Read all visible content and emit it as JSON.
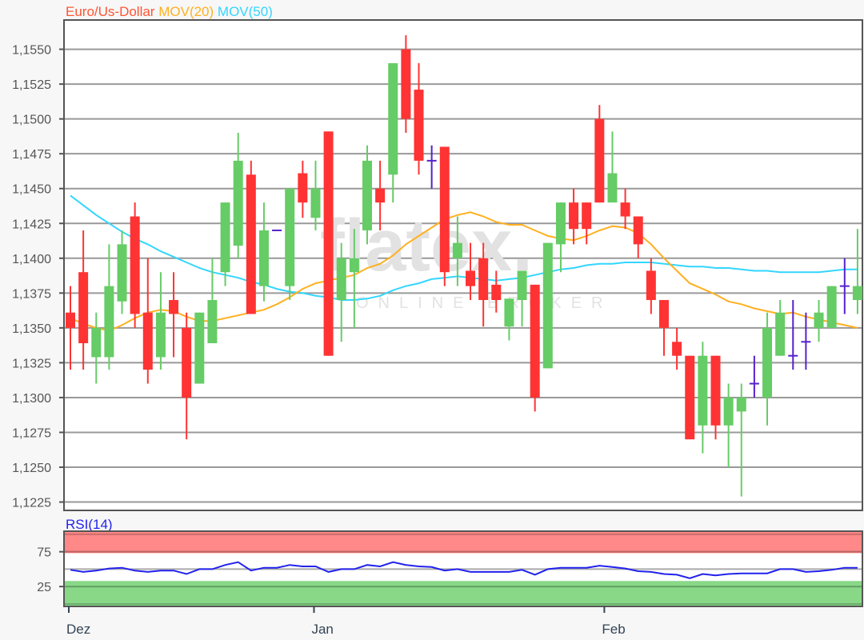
{
  "chart_data": {
    "type": "candlestick",
    "title": {
      "instrument": "Euro/Us-Dollar",
      "ma20_label": "MOV(20)",
      "ma50_label": "MOV(50)"
    },
    "colors": {
      "title": "#ff5533",
      "ma20": "#ffb020",
      "ma50": "#33d6ff",
      "up": "#66cc66",
      "down": "#ff3333",
      "doji": "#5522cc",
      "rsi": "#2222ee",
      "rsi_high_band": "#ff8888",
      "rsi_low_band": "#88d888"
    },
    "watermark": {
      "logo": "flatex.",
      "sub": "ONLINE BROKER"
    },
    "ylim": [
      1.1219,
      1.1571
    ],
    "grid": true,
    "y_ticks": [
      {
        "v": 1.155,
        "label": "1,1550"
      },
      {
        "v": 1.1525,
        "label": "1,1525"
      },
      {
        "v": 1.15,
        "label": "1,1500"
      },
      {
        "v": 1.1475,
        "label": "1,1475"
      },
      {
        "v": 1.145,
        "label": "1,1450"
      },
      {
        "v": 1.1425,
        "label": "1,1425"
      },
      {
        "v": 1.14,
        "label": "1,1400"
      },
      {
        "v": 1.1375,
        "label": "1,1375"
      },
      {
        "v": 1.135,
        "label": "1,1350"
      },
      {
        "v": 1.1325,
        "label": "1,1325"
      },
      {
        "v": 1.13,
        "label": "1,1300"
      },
      {
        "v": 1.1275,
        "label": "1,1275"
      },
      {
        "v": 1.125,
        "label": "1,1250"
      },
      {
        "v": 1.1225,
        "label": "1,1225"
      }
    ],
    "x_ticks": [
      {
        "index": 0,
        "label": "Dez"
      },
      {
        "index": 19,
        "label": "Jan"
      },
      {
        "index": 41.5,
        "label": "Feb"
      }
    ],
    "candles": [
      [
        1.1361,
        1.138,
        1.132,
        1.135
      ],
      [
        1.139,
        1.142,
        1.132,
        1.1339
      ],
      [
        1.1329,
        1.1361,
        1.131,
        1.135
      ],
      [
        1.1329,
        1.141,
        1.132,
        1.138
      ],
      [
        1.1369,
        1.142,
        1.136,
        1.141
      ],
      [
        1.143,
        1.144,
        1.135,
        1.136
      ],
      [
        1.1361,
        1.14,
        1.131,
        1.132
      ],
      [
        1.1329,
        1.139,
        1.132,
        1.1361
      ],
      [
        1.137,
        1.139,
        1.1329,
        1.136
      ],
      [
        1.135,
        1.1361,
        1.127,
        1.13
      ],
      [
        1.131,
        1.1361,
        1.131,
        1.1361
      ],
      [
        1.1339,
        1.14,
        1.1339,
        1.137
      ],
      [
        1.139,
        1.144,
        1.138,
        1.144
      ],
      [
        1.1409,
        1.149,
        1.14,
        1.147
      ],
      [
        1.146,
        1.147,
        1.136,
        1.136
      ],
      [
        1.138,
        1.144,
        1.1369,
        1.142
      ],
      [
        1.142,
        1.142,
        1.142,
        1.142
      ],
      [
        1.138,
        1.145,
        1.137,
        1.145
      ],
      [
        1.1461,
        1.147,
        1.1429,
        1.144
      ],
      [
        1.1429,
        1.147,
        1.142,
        1.145
      ],
      [
        1.1491,
        1.1491,
        1.133,
        1.133
      ],
      [
        1.137,
        1.1411,
        1.134,
        1.14
      ],
      [
        1.139,
        1.1421,
        1.135,
        1.14
      ],
      [
        1.142,
        1.1481,
        1.141,
        1.147
      ],
      [
        1.145,
        1.147,
        1.142,
        1.144
      ],
      [
        1.146,
        1.154,
        1.144,
        1.154
      ],
      [
        1.155,
        1.156,
        1.149,
        1.15
      ],
      [
        1.1521,
        1.154,
        1.146,
        1.147
      ],
      [
        1.147,
        1.1481,
        1.145,
        1.147
      ],
      [
        1.148,
        1.148,
        1.138,
        1.139
      ],
      [
        1.14,
        1.143,
        1.138,
        1.1411
      ],
      [
        1.1391,
        1.1411,
        1.137,
        1.138
      ],
      [
        1.14,
        1.1411,
        1.1351,
        1.137
      ],
      [
        1.1381,
        1.1391,
        1.1361,
        1.137
      ],
      [
        1.1351,
        1.1371,
        1.1341,
        1.1371
      ],
      [
        1.137,
        1.1391,
        1.1351,
        1.1391
      ],
      [
        1.1381,
        1.1381,
        1.129,
        1.13
      ],
      [
        1.1321,
        1.1411,
        1.1321,
        1.1411
      ],
      [
        1.141,
        1.144,
        1.139,
        1.144
      ],
      [
        1.144,
        1.145,
        1.141,
        1.1421
      ],
      [
        1.144,
        1.144,
        1.141,
        1.1421
      ],
      [
        1.15,
        1.151,
        1.144,
        1.144
      ],
      [
        1.144,
        1.1491,
        1.144,
        1.1461
      ],
      [
        1.144,
        1.145,
        1.1421,
        1.143
      ],
      [
        1.143,
        1.143,
        1.14,
        1.141
      ],
      [
        1.1391,
        1.14,
        1.136,
        1.137
      ],
      [
        1.137,
        1.137,
        1.133,
        1.135
      ],
      [
        1.134,
        1.135,
        1.132,
        1.133
      ],
      [
        1.133,
        1.133,
        1.127,
        1.127
      ],
      [
        1.128,
        1.134,
        1.126,
        1.133
      ],
      [
        1.133,
        1.133,
        1.127,
        1.128
      ],
      [
        1.128,
        1.131,
        1.125,
        1.13
      ],
      [
        1.129,
        1.131,
        1.1229,
        1.13
      ],
      [
        1.131,
        1.133,
        1.13,
        1.131
      ],
      [
        1.13,
        1.1361,
        1.128,
        1.135
      ],
      [
        1.133,
        1.137,
        1.133,
        1.1361
      ],
      [
        1.133,
        1.137,
        1.132,
        1.133
      ],
      [
        1.134,
        1.1361,
        1.132,
        1.134
      ],
      [
        1.135,
        1.137,
        1.134,
        1.1361
      ],
      [
        1.135,
        1.138,
        1.135,
        1.138
      ],
      [
        1.138,
        1.14,
        1.136,
        1.138
      ],
      [
        1.137,
        1.1421,
        1.136,
        1.138
      ]
    ],
    "ma20": [
      1.1357,
      1.1353,
      1.135,
      1.1348,
      1.1352,
      1.1357,
      1.1361,
      1.1363,
      1.1362,
      1.1358,
      1.1355,
      1.1355,
      1.1357,
      1.1359,
      1.1361,
      1.1363,
      1.1367,
      1.1372,
      1.1378,
      1.1382,
      1.1384,
      1.1386,
      1.1388,
      1.1393,
      1.1396,
      1.1402,
      1.141,
      1.1416,
      1.1422,
      1.1428,
      1.1431,
      1.1433,
      1.143,
      1.1426,
      1.1424,
      1.1424,
      1.142,
      1.1416,
      1.1414,
      1.1413,
      1.1416,
      1.142,
      1.1423,
      1.1422,
      1.1418,
      1.141,
      1.14,
      1.1391,
      1.1382,
      1.1378,
      1.1374,
      1.1369,
      1.1367,
      1.1364,
      1.1362,
      1.136,
      1.1361,
      1.1358,
      1.1356,
      1.1354,
      1.1352,
      1.135
    ],
    "ma50": [
      1.1445,
      1.1438,
      1.1431,
      1.1425,
      1.1419,
      1.1414,
      1.141,
      1.1405,
      1.1401,
      1.1397,
      1.1393,
      1.139,
      1.1388,
      1.1386,
      1.1383,
      1.1381,
      1.1378,
      1.1376,
      1.1375,
      1.1373,
      1.1372,
      1.137,
      1.137,
      1.1371,
      1.1373,
      1.1377,
      1.138,
      1.1382,
      1.1385,
      1.1386,
      1.1387,
      1.1386,
      1.1385,
      1.1384,
      1.1385,
      1.1386,
      1.1388,
      1.139,
      1.1392,
      1.1393,
      1.1395,
      1.1396,
      1.1396,
      1.1397,
      1.1397,
      1.1397,
      1.1396,
      1.1395,
      1.1394,
      1.1394,
      1.1393,
      1.1393,
      1.1392,
      1.1391,
      1.1391,
      1.139,
      1.139,
      1.139,
      1.139,
      1.1391,
      1.1392,
      1.1392
    ],
    "rsi": {
      "label": "RSI(14)",
      "ylim": [
        -3.5,
        104.5
      ],
      "y_ticks": [
        {
          "v": 75,
          "label": "75"
        },
        {
          "v": 25,
          "label": "25"
        }
      ],
      "high_band": [
        73,
        104.5
      ],
      "low_band": [
        -3.5,
        33
      ],
      "values": [
        49,
        46,
        48,
        51,
        52,
        48,
        46,
        48,
        48,
        43,
        50,
        50,
        56,
        60,
        48,
        52,
        52,
        56,
        54,
        54,
        46,
        50,
        50,
        56,
        54,
        60,
        56,
        54,
        53,
        48,
        50,
        46,
        46,
        46,
        46,
        49,
        42,
        50,
        52,
        52,
        52,
        55,
        53,
        51,
        47,
        46,
        43,
        42,
        37,
        43,
        41,
        43,
        44,
        44,
        44,
        50,
        50,
        46,
        47,
        49,
        52,
        52
      ]
    }
  }
}
